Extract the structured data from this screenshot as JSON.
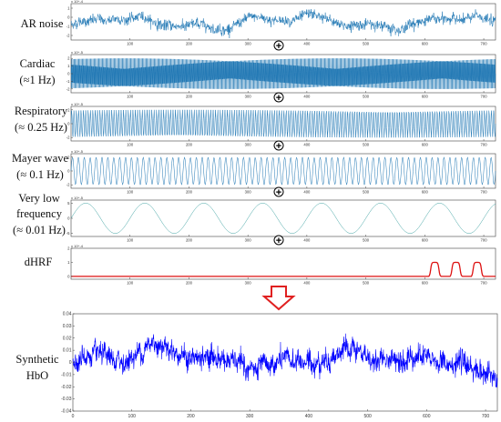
{
  "chart_data": {
    "type": "line",
    "panels": [
      {
        "label": [
          "AR noise"
        ],
        "color": "#1f77b4",
        "generator": "ar_noise",
        "x_ticks": [
          "100",
          "200",
          "300",
          "400",
          "500",
          "600",
          "700"
        ],
        "y_ticks": [
          "1",
          "0",
          "-1",
          "-2"
        ],
        "y_exponent": "x 10^-4",
        "xlim": [
          0,
          720
        ],
        "ylim": [
          -2.5,
          1.5
        ]
      },
      {
        "label": [
          "Cardiac",
          "(≈1 Hz)"
        ],
        "color": "#1f77b4",
        "generator": "sine",
        "frequency_hz": 1,
        "amplitude": 2,
        "x_ticks": [
          "100",
          "200",
          "300",
          "400",
          "500",
          "600",
          "700"
        ],
        "y_ticks": [
          "2",
          "1",
          "0",
          "-1",
          "-2"
        ],
        "y_exponent": "x 10^-5",
        "xlim": [
          0,
          720
        ],
        "ylim": [
          -2.5,
          2.5
        ]
      },
      {
        "label": [
          "Respiratory",
          "(≈ 0.25 Hz)"
        ],
        "color": "#1f77b4",
        "generator": "sine",
        "frequency_hz": 0.25,
        "amplitude": 2,
        "x_ticks": [
          "100",
          "200",
          "300",
          "400",
          "500",
          "600",
          "700"
        ],
        "y_ticks": [
          "2",
          "0",
          "-2"
        ],
        "y_exponent": "x 10^-5",
        "xlim": [
          0,
          720
        ],
        "ylim": [
          -2.5,
          2.5
        ]
      },
      {
        "label": [
          "Mayer wave",
          "(≈ 0.1 Hz)"
        ],
        "color": "#1f77b4",
        "generator": "sine",
        "frequency_hz": 0.1,
        "amplitude": 2,
        "x_ticks": [
          "100",
          "200",
          "300",
          "400",
          "500",
          "600",
          "700"
        ],
        "y_ticks": [
          "2",
          "0",
          "-2"
        ],
        "y_exponent": "x 10^-5",
        "xlim": [
          0,
          720
        ],
        "ylim": [
          -2.5,
          2.5
        ]
      },
      {
        "label": [
          "Very low",
          "frequency",
          "(≈ 0.01 Hz)"
        ],
        "color": "#3aa0a0",
        "generator": "sine",
        "frequency_hz": 0.01,
        "amplitude": 5,
        "x_ticks": [
          "100",
          "200",
          "300",
          "400",
          "500",
          "600",
          "700"
        ],
        "y_ticks": [
          "5",
          "0",
          "-5"
        ],
        "y_exponent": "x 10^-5",
        "xlim": [
          0,
          720
        ],
        "ylim": [
          -6,
          6
        ]
      },
      {
        "label": [
          "dHRF"
        ],
        "color": "#dd1111",
        "generator": "hrf",
        "block_starts": [
          607,
          643,
          679
        ],
        "block_length": 20,
        "amplitude": 1,
        "x_ticks": [
          "100",
          "200",
          "300",
          "400",
          "500",
          "600",
          "700"
        ],
        "y_ticks": [
          "2",
          "1",
          "0"
        ],
        "y_exponent": "x 10^-4",
        "xlim": [
          0,
          720
        ],
        "ylim": [
          -0.2,
          2
        ]
      },
      {
        "label": [
          "Synthetic",
          "HbO"
        ],
        "color": "#0000ff",
        "generator": "synthetic",
        "x_ticks": [
          "0",
          "100",
          "200",
          "300",
          "400",
          "500",
          "600",
          "700"
        ],
        "y_ticks": [
          "0.04",
          "0.03",
          "0.02",
          "0.01",
          "0",
          "-0.01",
          "-0.02",
          "-0.03",
          "-0.04"
        ],
        "y_exponent": "",
        "xlim": [
          0,
          720
        ],
        "ylim": [
          -0.04,
          0.04
        ]
      }
    ]
  },
  "operators": {
    "plus_symbol": "+"
  },
  "colors": {
    "arrow": "#e02020",
    "axis": "#444444"
  }
}
